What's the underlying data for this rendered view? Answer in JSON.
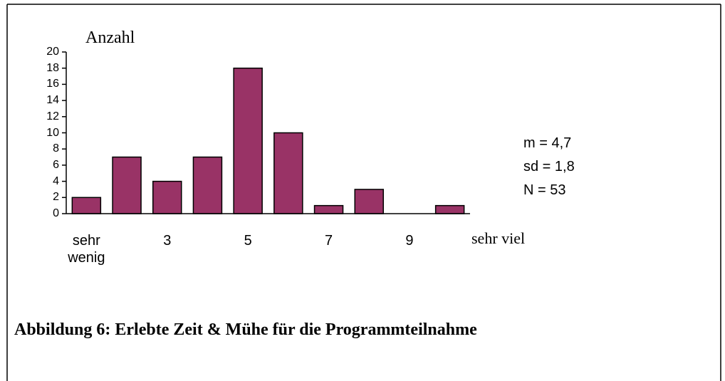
{
  "chart_data": {
    "type": "bar",
    "y_label": "Anzahl",
    "categories": [
      "sehr wenig",
      null,
      "3",
      null,
      "5",
      null,
      "7",
      null,
      "9",
      "sehr viel"
    ],
    "values": [
      2,
      7,
      4,
      7,
      18,
      10,
      1,
      3,
      0,
      1
    ],
    "color": "#993366",
    "ylim": [
      0,
      20
    ],
    "yticks": [
      0,
      2,
      4,
      6,
      8,
      10,
      12,
      14,
      16,
      18,
      20
    ],
    "annotations": [
      "m = 4,7",
      "sd = 1,8",
      "N = 53"
    ],
    "caption": "Abbildung 6: Erlebte Zeit & Mühe für die Programmteilnahme"
  }
}
